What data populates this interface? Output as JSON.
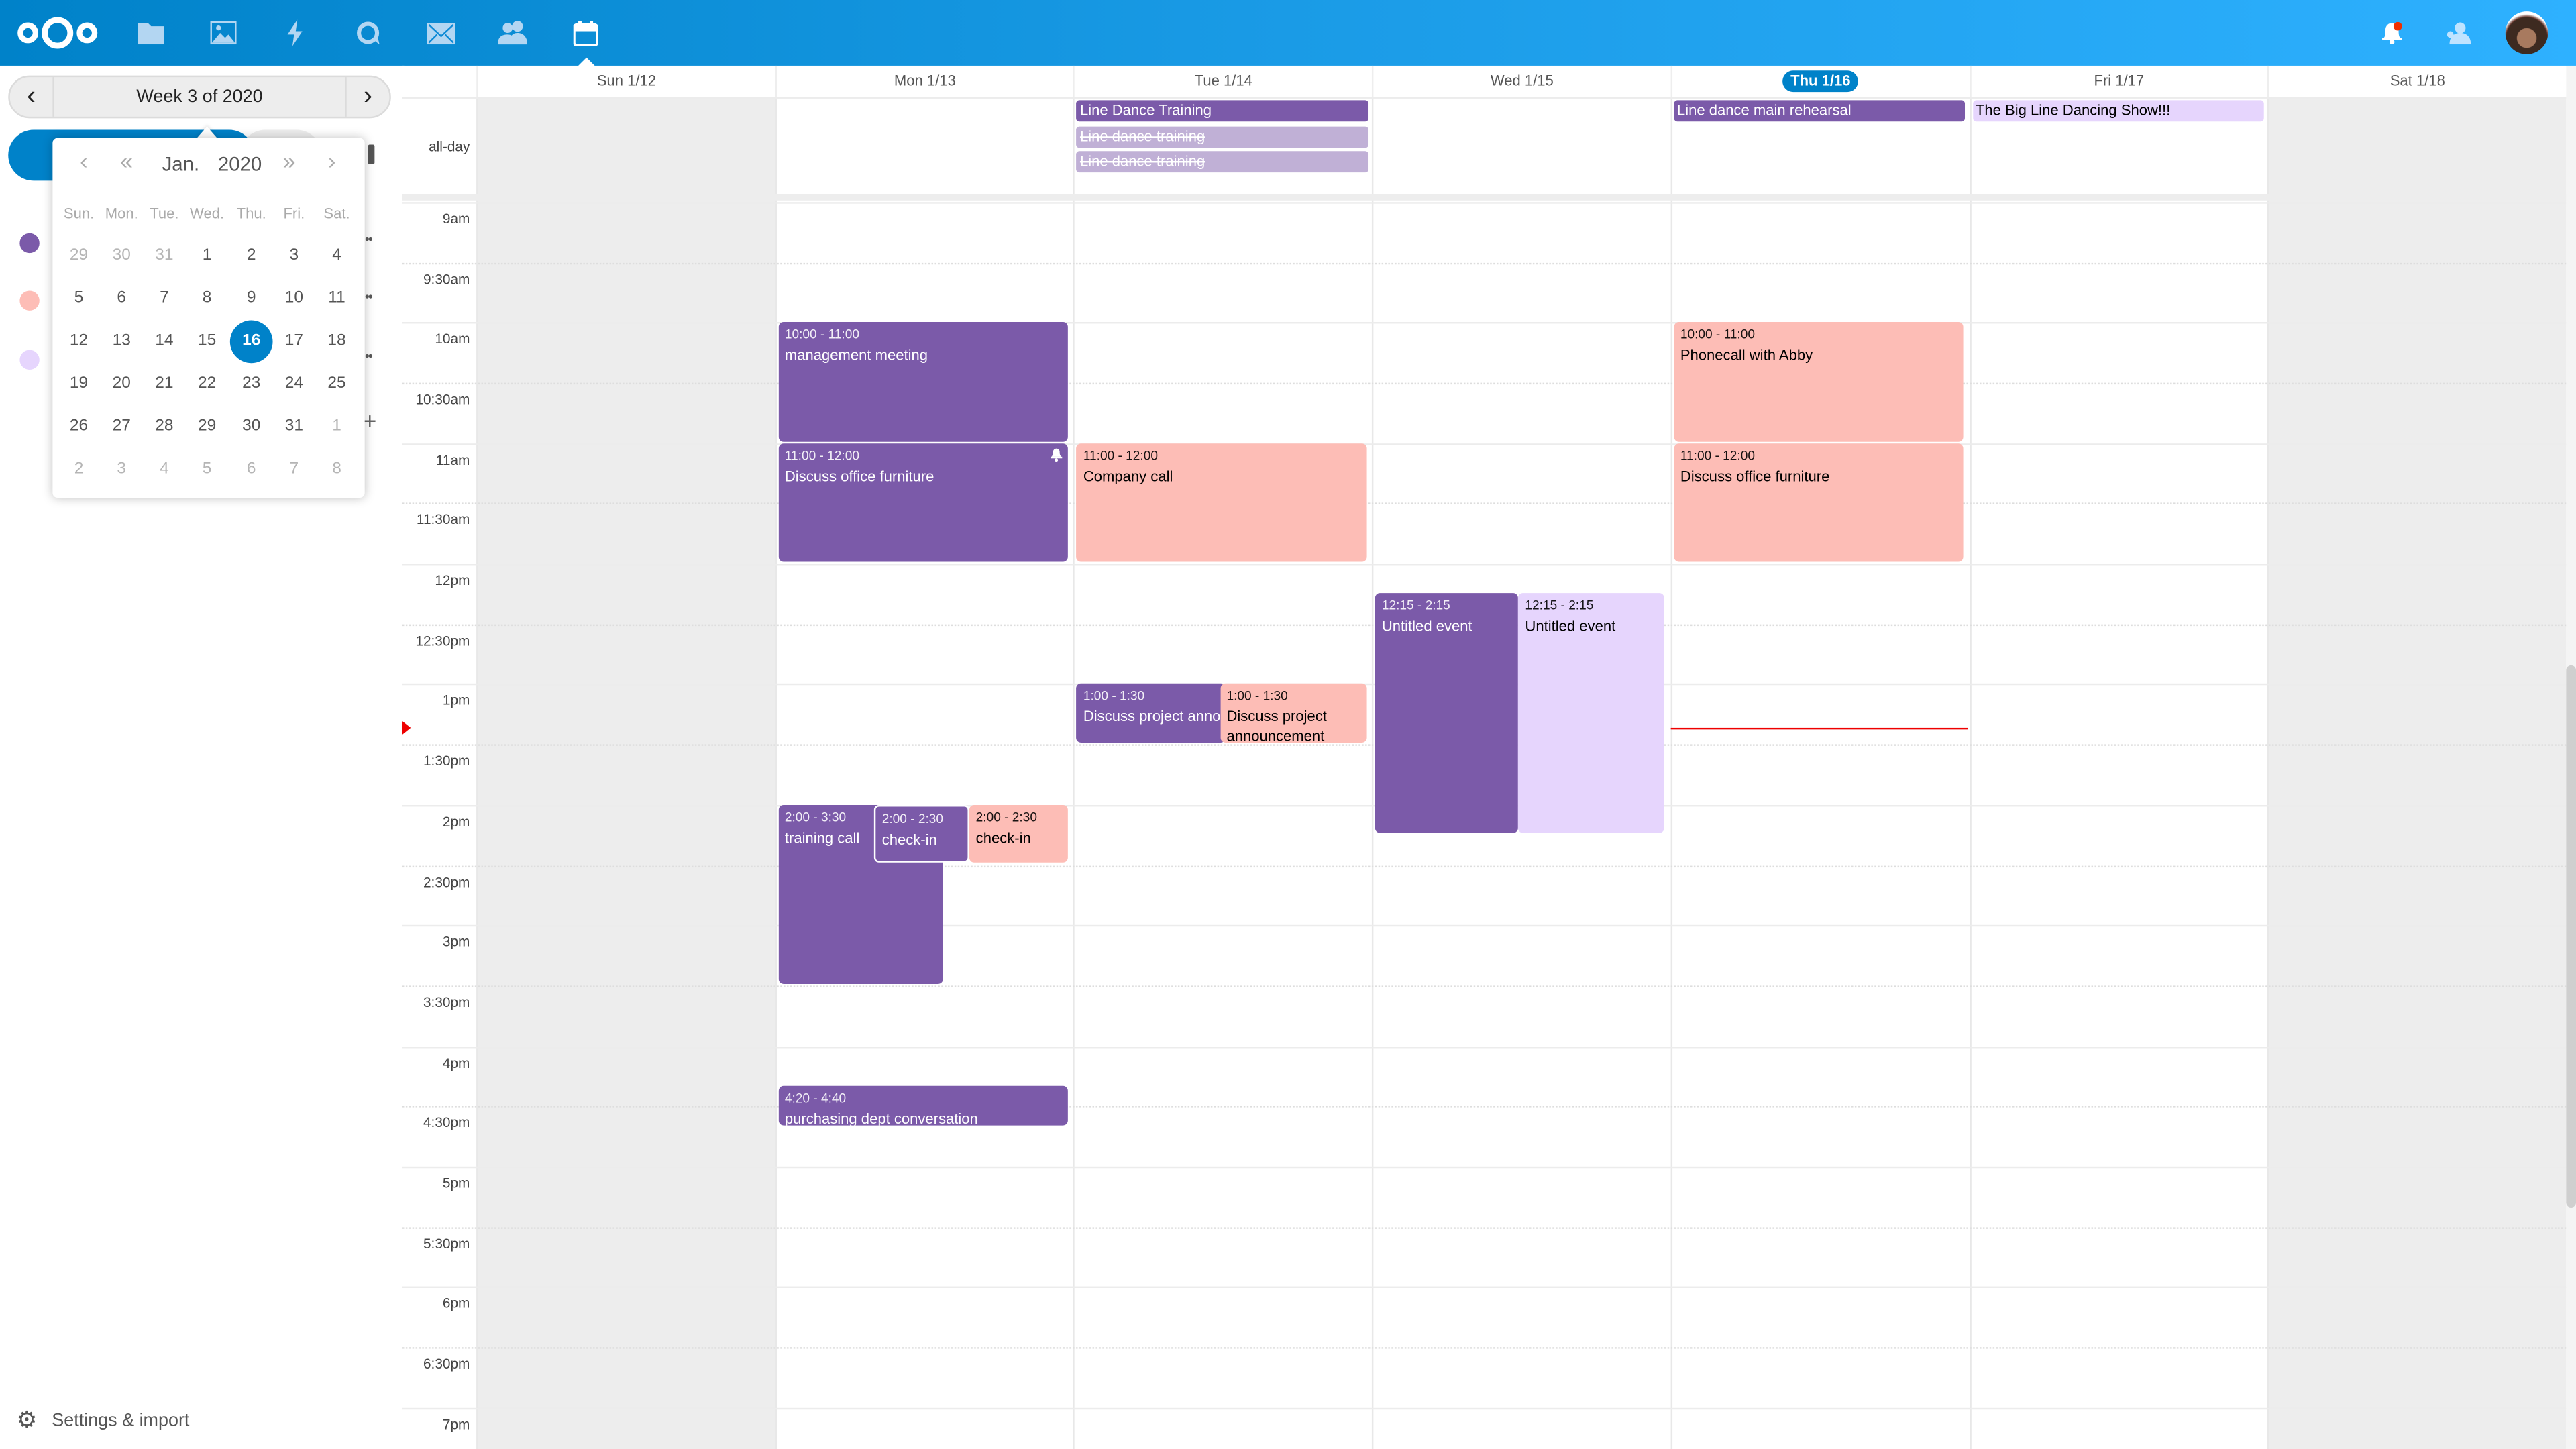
{
  "header": {
    "apps": [
      {
        "name": "files",
        "icon": "folder-icon"
      },
      {
        "name": "photos",
        "icon": "image-icon"
      },
      {
        "name": "activity",
        "icon": "lightning-icon"
      },
      {
        "name": "talk",
        "icon": "talk-icon"
      },
      {
        "name": "mail",
        "icon": "mail-icon"
      },
      {
        "name": "contacts",
        "icon": "contacts-icon"
      },
      {
        "name": "calendar",
        "icon": "calendar-icon",
        "active": true
      }
    ],
    "notification_badge": true
  },
  "sidebar": {
    "week_label": "Week 3 of 2020",
    "calendars": [
      {
        "color": "#7b5aa9"
      },
      {
        "color": "#fdbdb6"
      },
      {
        "color": "#e6d5fd"
      }
    ],
    "settings_label": "Settings & import"
  },
  "datepicker": {
    "month": "Jan.",
    "year": "2020",
    "weekdays": [
      "Sun.",
      "Mon.",
      "Tue.",
      "Wed.",
      "Thu.",
      "Fri.",
      "Sat."
    ],
    "weeks": [
      [
        "29",
        "30",
        "31",
        "1",
        "2",
        "3",
        "4"
      ],
      [
        "5",
        "6",
        "7",
        "8",
        "9",
        "10",
        "11"
      ],
      [
        "12",
        "13",
        "14",
        "15",
        "16",
        "17",
        "18"
      ],
      [
        "19",
        "20",
        "21",
        "22",
        "23",
        "24",
        "25"
      ],
      [
        "26",
        "27",
        "28",
        "29",
        "30",
        "31",
        "1"
      ],
      [
        "2",
        "3",
        "4",
        "5",
        "6",
        "7",
        "8"
      ]
    ],
    "selected": "16"
  },
  "calendar": {
    "allday_label": "all-day",
    "days": [
      {
        "label": "Sun 1/12",
        "weekend": true
      },
      {
        "label": "Mon 1/13"
      },
      {
        "label": "Tue 1/14"
      },
      {
        "label": "Wed 1/15"
      },
      {
        "label": "Thu 1/16",
        "today": true
      },
      {
        "label": "Fri 1/17"
      },
      {
        "label": "Sat 1/18",
        "weekend": true
      }
    ],
    "time_labels": [
      "9am",
      "9:30am",
      "10am",
      "10:30am",
      "11am",
      "11:30am",
      "12pm",
      "12:30pm",
      "1pm",
      "1:30pm",
      "2pm",
      "2:30pm",
      "3pm",
      "3:30pm",
      "4pm",
      "4:30pm",
      "5pm",
      "5:30pm",
      "6pm",
      "6:30pm",
      "7pm"
    ],
    "now": "13:22",
    "colors": {
      "purple": "#7b5aa9",
      "pink": "#fdbdb6",
      "lavender": "#e6d5fd",
      "faded": "#c0b0d6"
    },
    "allday_events": [
      {
        "day": 2,
        "title": "Line Dance Training",
        "color": "purple"
      },
      {
        "day": 2,
        "title": "Line dance training",
        "color": "faded",
        "cancelled": true
      },
      {
        "day": 2,
        "title": "Line dance training",
        "color": "faded",
        "cancelled": true
      },
      {
        "day": 4,
        "title": "Line dance main rehearsal",
        "color": "purple"
      },
      {
        "day": 5,
        "title": "The Big Line Dancing Show!!!",
        "color": "lavender"
      }
    ],
    "events": [
      {
        "day": 1,
        "start": "10:00",
        "end": "11:00",
        "time": "10:00 - 11:00",
        "title": "management meeting",
        "color": "purple"
      },
      {
        "day": 1,
        "start": "11:00",
        "end": "12:00",
        "time": "11:00 - 12:00",
        "title": "Discuss office furniture",
        "color": "purple",
        "alarm": true
      },
      {
        "day": 1,
        "start": "14:00",
        "end": "15:30",
        "time": "2:00 - 3:30",
        "title": "training call",
        "color": "purple"
      },
      {
        "day": 1,
        "start": "14:00",
        "end": "14:30",
        "time": "2:00 - 2:30",
        "title": "check-in",
        "color": "purple"
      },
      {
        "day": 1,
        "start": "14:00",
        "end": "14:30",
        "time": "2:00 - 2:30",
        "title": "check-in",
        "color": "pink"
      },
      {
        "day": 1,
        "start": "16:20",
        "end": "16:40",
        "time": "4:20 - 4:40",
        "title": "purchasing dept conversation",
        "color": "purple"
      },
      {
        "day": 2,
        "start": "11:00",
        "end": "12:00",
        "time": "11:00 - 12:00",
        "title": "Company call",
        "color": "pink"
      },
      {
        "day": 2,
        "start": "13:00",
        "end": "13:30",
        "time": "1:00 - 1:30",
        "title": "Discuss project announcement",
        "color": "purple"
      },
      {
        "day": 2,
        "start": "13:00",
        "end": "13:30",
        "time": "1:00 - 1:30",
        "title": "Discuss project announcement",
        "color": "pink"
      },
      {
        "day": 3,
        "start": "12:15",
        "end": "14:15",
        "time": "12:15 - 2:15",
        "title": "Untitled event",
        "color": "purple"
      },
      {
        "day": 3,
        "start": "12:15",
        "end": "14:15",
        "time": "12:15 - 2:15",
        "title": "Untitled event",
        "color": "lavender"
      },
      {
        "day": 4,
        "start": "10:00",
        "end": "11:00",
        "time": "10:00 - 11:00",
        "title": "Phonecall with Abby",
        "color": "pink"
      },
      {
        "day": 4,
        "start": "11:00",
        "end": "12:00",
        "time": "11:00 - 12:00",
        "title": "Discuss office furniture",
        "color": "pink"
      }
    ]
  }
}
